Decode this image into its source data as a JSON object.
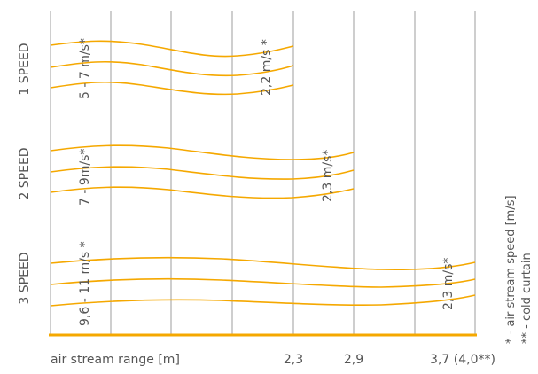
{
  "colors": {
    "stream": "#F5A800",
    "grid": "#b4b4b4",
    "baseline": "#F5A800",
    "text": "#555555"
  },
  "rows": [
    {
      "speed_label": "1 SPEED",
      "stream_label": "5 - 7 m/s*",
      "end_label": "2,2 m/s *",
      "range_m": 2.2
    },
    {
      "speed_label": "2 SPEED",
      "stream_label": "7 - 9m/s*",
      "end_label": "2,3 m/s*",
      "range_m": 2.9
    },
    {
      "speed_label": "3 SPEED",
      "stream_label": "9,6 - 11 m/s *",
      "end_label": "2,3 m/s*",
      "range_m": 3.7
    }
  ],
  "axis": {
    "label": "air stream range [m]",
    "ticks": [
      "2,3",
      "2,9",
      "3,7 (4,0**)"
    ]
  },
  "notes": {
    "speed": "* - air stream speed [m/s]",
    "curtain": "** - cold curtain"
  }
}
